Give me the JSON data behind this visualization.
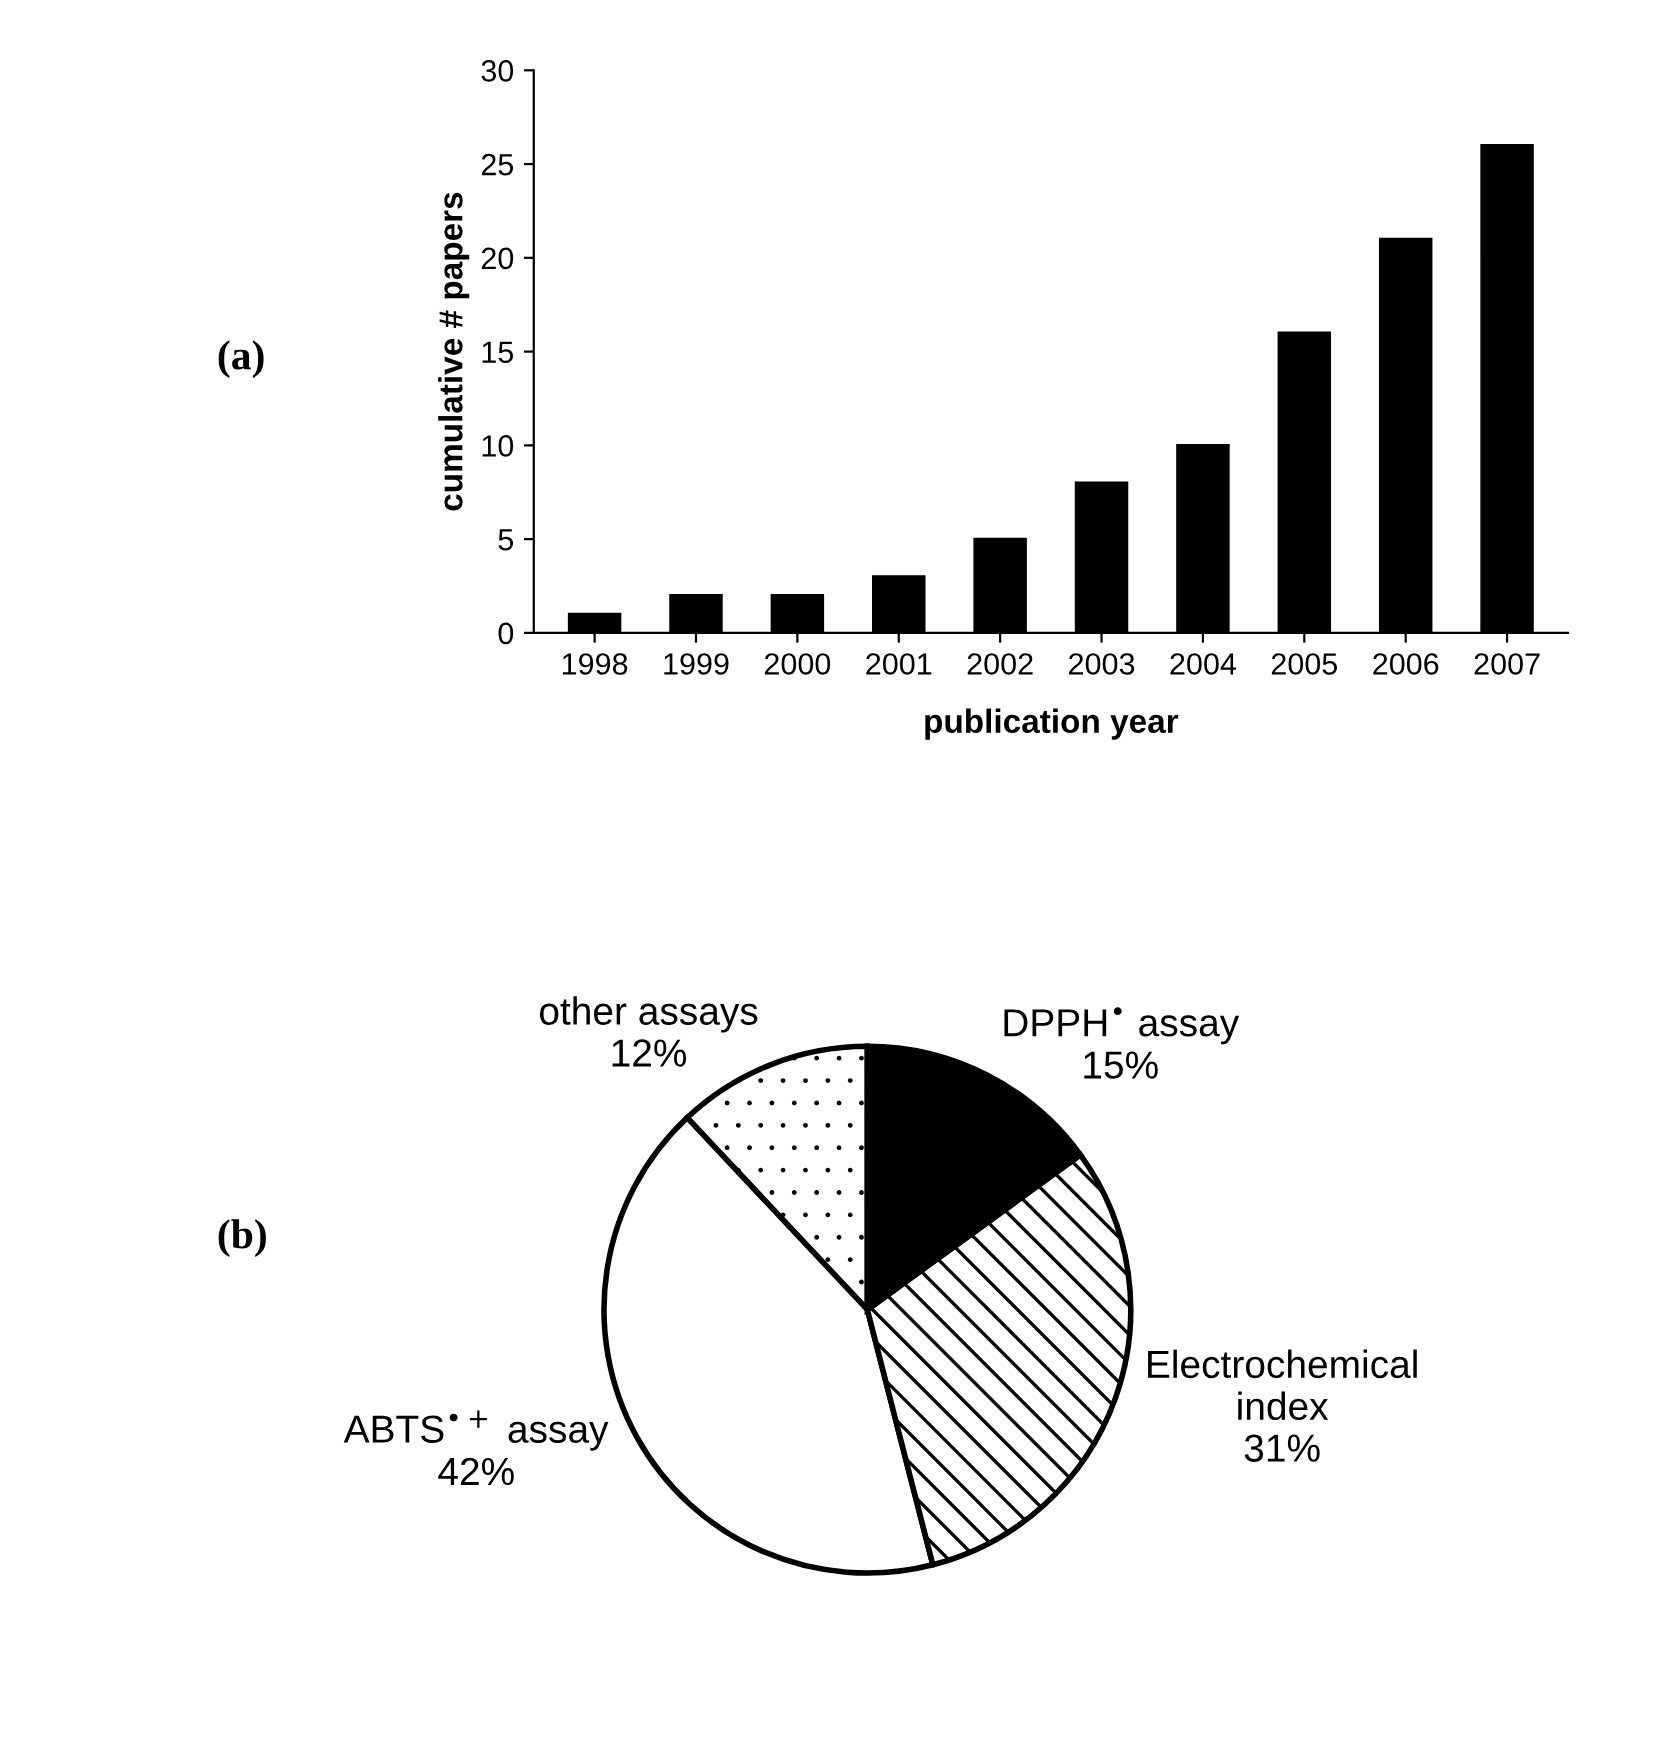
{
  "chart_data": [
    {
      "type": "bar",
      "xlabel": "publication year",
      "ylabel": "cumulative # papers",
      "categories": [
        "1998",
        "1999",
        "2000",
        "2001",
        "2002",
        "2003",
        "2004",
        "2005",
        "2006",
        "2007"
      ],
      "values": [
        1,
        2,
        2,
        3,
        5,
        8,
        10,
        16,
        21,
        26
      ],
      "color": "#000000",
      "ylim": [
        0,
        30
      ],
      "yticks": [
        0,
        5,
        10,
        15,
        20,
        25,
        30
      ],
      "grid": false,
      "annotations": [
        "(a)"
      ]
    },
    {
      "type": "pie",
      "categories": [
        "other assays",
        "ABTS$^{•+}$ assay",
        "Electrochemical\nindex",
        "DPPH$^{•}$ assay"
      ],
      "values": [
        12,
        42,
        31,
        15
      ],
      "value_labels": [
        "12%",
        "42%",
        "31%",
        "15%"
      ],
      "colors": [
        "#ffffff",
        "#ffffff",
        "#ffffff",
        "#000000"
      ],
      "annotations": [
        "(b)"
      ]
    }
  ]
}
